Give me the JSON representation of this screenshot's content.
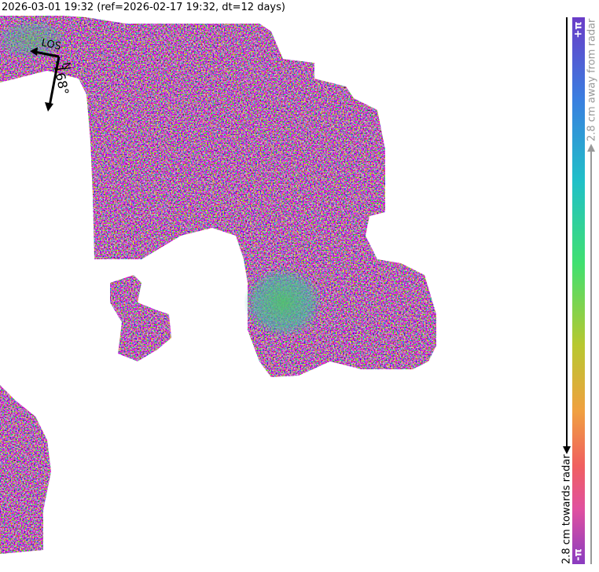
{
  "header": {
    "title": "2026-03-01 19:32 (ref=2026-02-17 19:32, dt=12 days)"
  },
  "compass": {
    "los": "LOS",
    "north": "N",
    "heading": "-168°"
  },
  "colorbar": {
    "top": "+π",
    "bottom": "-π",
    "away": "2.8 cm away from radar",
    "towards": "2.8 cm towards radar"
  }
}
